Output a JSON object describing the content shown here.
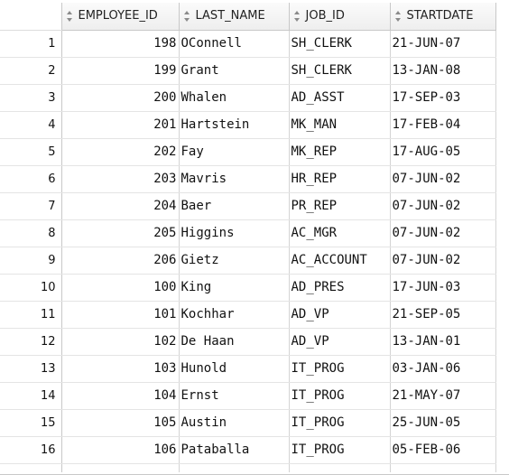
{
  "columns": [
    {
      "label": "EMPLOYEE_ID"
    },
    {
      "label": "LAST_NAME"
    },
    {
      "label": "JOB_ID"
    },
    {
      "label": "STARTDATE"
    }
  ],
  "rows": [
    {
      "n": "1",
      "employee_id": "198",
      "last_name": "OConnell",
      "job_id": "SH_CLERK",
      "startdate": "21-JUN-07"
    },
    {
      "n": "2",
      "employee_id": "199",
      "last_name": "Grant",
      "job_id": "SH_CLERK",
      "startdate": "13-JAN-08"
    },
    {
      "n": "3",
      "employee_id": "200",
      "last_name": "Whalen",
      "job_id": "AD_ASST",
      "startdate": "17-SEP-03"
    },
    {
      "n": "4",
      "employee_id": "201",
      "last_name": "Hartstein",
      "job_id": "MK_MAN",
      "startdate": "17-FEB-04"
    },
    {
      "n": "5",
      "employee_id": "202",
      "last_name": "Fay",
      "job_id": "MK_REP",
      "startdate": "17-AUG-05"
    },
    {
      "n": "6",
      "employee_id": "203",
      "last_name": "Mavris",
      "job_id": "HR_REP",
      "startdate": "07-JUN-02"
    },
    {
      "n": "7",
      "employee_id": "204",
      "last_name": "Baer",
      "job_id": "PR_REP",
      "startdate": "07-JUN-02"
    },
    {
      "n": "8",
      "employee_id": "205",
      "last_name": "Higgins",
      "job_id": "AC_MGR",
      "startdate": "07-JUN-02"
    },
    {
      "n": "9",
      "employee_id": "206",
      "last_name": "Gietz",
      "job_id": "AC_ACCOUNT",
      "startdate": "07-JUN-02"
    },
    {
      "n": "10",
      "employee_id": "100",
      "last_name": "King",
      "job_id": "AD_PRES",
      "startdate": "17-JUN-03"
    },
    {
      "n": "11",
      "employee_id": "101",
      "last_name": "Kochhar",
      "job_id": "AD_VP",
      "startdate": "21-SEP-05"
    },
    {
      "n": "12",
      "employee_id": "102",
      "last_name": "De Haan",
      "job_id": "AD_VP",
      "startdate": "13-JAN-01"
    },
    {
      "n": "13",
      "employee_id": "103",
      "last_name": "Hunold",
      "job_id": "IT_PROG",
      "startdate": "03-JAN-06"
    },
    {
      "n": "14",
      "employee_id": "104",
      "last_name": "Ernst",
      "job_id": "IT_PROG",
      "startdate": "21-MAY-07"
    },
    {
      "n": "15",
      "employee_id": "105",
      "last_name": "Austin",
      "job_id": "IT_PROG",
      "startdate": "25-JUN-05"
    },
    {
      "n": "16",
      "employee_id": "106",
      "last_name": "Pataballa",
      "job_id": "IT_PROG",
      "startdate": "05-FEB-06"
    }
  ],
  "sort_icon": "sort-updown-icon",
  "colors": {
    "header_bg": "#f2f2f2",
    "grid_line": "#d4d4d4",
    "sort_icon": "#8a8a8a"
  }
}
